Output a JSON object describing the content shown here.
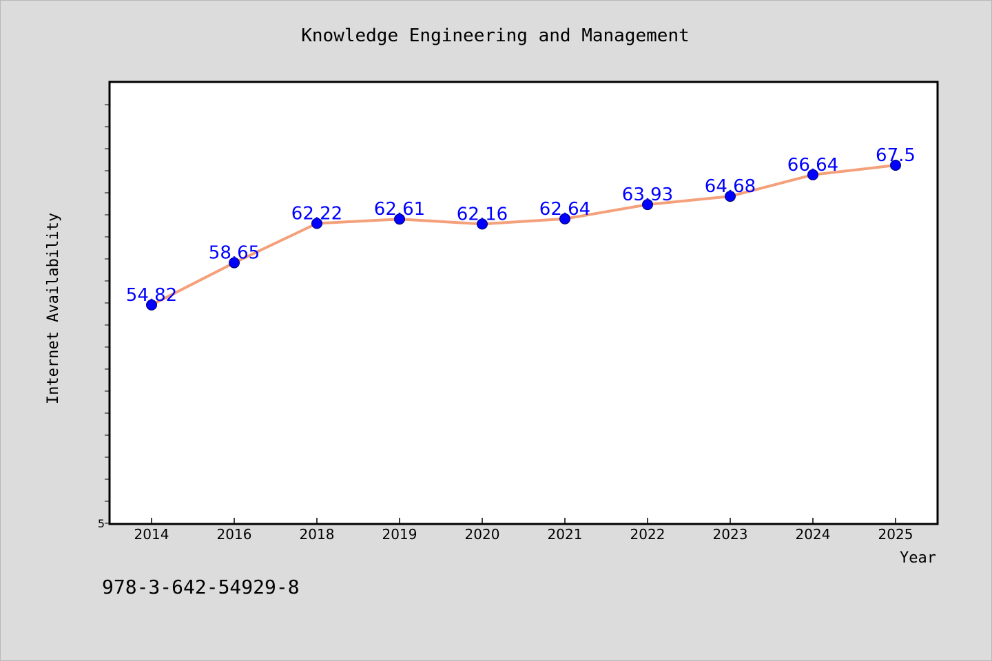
{
  "chart_data": {
    "type": "line",
    "title": "Knowledge Engineering and Management",
    "xlabel": "Year",
    "ylabel": "Internet Availability",
    "categories": [
      "2014",
      "2016",
      "2018",
      "2019",
      "2020",
      "2021",
      "2022",
      "2023",
      "2024",
      "2025"
    ],
    "series": [
      {
        "values": [
          54.82,
          58.65,
          62.22,
          62.61,
          62.16,
          62.64,
          63.93,
          64.68,
          66.64,
          67.5
        ]
      }
    ],
    "data_labels": [
      "54.82",
      "58.65",
      "62.22",
      "62.61",
      "62.16",
      "62.64",
      "63.93",
      "64.68",
      "66.64",
      "67.5"
    ],
    "y_tick_labels": [
      "5"
    ],
    "ylim": [
      35,
      75
    ],
    "grid": false,
    "colors": {
      "line": "#f4a07a",
      "marker": "#0000ff",
      "data_label": "#0000ff",
      "plot_background": "#ffffff",
      "page_background": "#dcdcdc"
    }
  },
  "footer_text": "978-3-642-54929-8"
}
